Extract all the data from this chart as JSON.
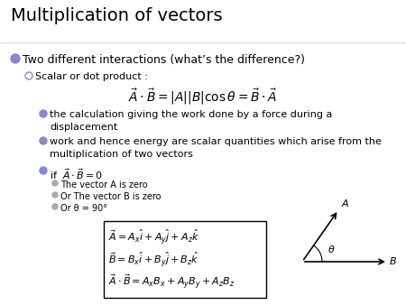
{
  "title": "Multiplication of vectors",
  "bg_color": "#ffffff",
  "title_color": "#000000",
  "bullet1_text": "Two different interactions (what’s the difference?)",
  "bullet1_color": "#8888cc",
  "sub_bullet1": "Scalar or dot product :",
  "sub_bullets": [
    "the calculation giving the work done by a force during a\ndisplacement",
    "work and hence energy are scalar quantities which arise from the\nmultiplication of two vectors",
    "if  $\\vec{A}\\cdot\\vec{B}=0$"
  ],
  "sub_sub_bullets": [
    "The vector A is zero",
    "Or The vector B is zero",
    "Or θ = 90°"
  ],
  "box_formulas": [
    "$\\vec{A}=A_x\\hat{i}+A_y\\hat{j}+A_z\\hat{k}$",
    "$\\vec{B}=B_x\\hat{i}+B_y\\hat{j}+B_z\\hat{k}$",
    "$\\vec{A}\\cdot\\vec{B}=A_xB_x+A_yB_y+A_zB_z$"
  ],
  "text_color": "#000000",
  "sub_bullet_color": "#8888cc",
  "accent_color": "#8888cc",
  "title_fontsize": 14,
  "body_fontsize": 8,
  "formula_fontsize": 9
}
